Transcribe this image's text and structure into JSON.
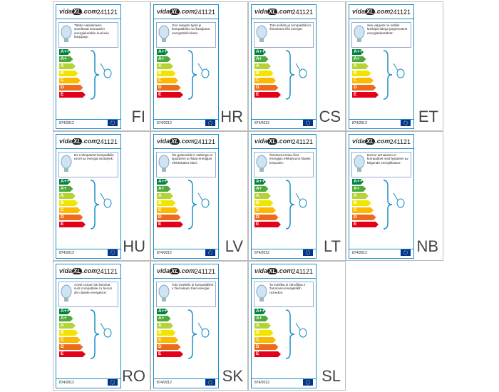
{
  "brand": {
    "name": "vida",
    "mark": "XL",
    "suffix": ".com"
  },
  "product_number": "241121",
  "regulation": "874/2012",
  "classes": [
    "A++",
    "A+",
    "A",
    "B",
    "C",
    "D",
    "E"
  ],
  "labels": [
    {
      "lang": "FI",
      "text": "Tähän valaisimeen soveltuvat seuraaviin energialuokkiin kuuluvia lamppuja:"
    },
    {
      "lang": "HR",
      "text": "Ovo rasvjeto tijelo je kompatibilno sa žaruljama energetskih klasa:"
    },
    {
      "lang": "CS",
      "text": "Toto svítidlo je kompatibilní s žárovkami tříd energie:"
    },
    {
      "lang": "ET",
      "text": "See valgusti on sobilik lambipirnidega järgnevatest energiaklassidest:"
    },
    {
      "lang": "HU",
      "text": "Ez a lámpatest kompatibilis ezzel az energia osztályok:"
    },
    {
      "lang": "LV",
      "text": "Šis gaismeklis ir saderīgs ar spuldzēm ar šādu energijas efektivitātes klasi:"
    },
    {
      "lang": "LT",
      "text": "Šviestuvui tinka šios energijos efektyvumo klasės lemputės:"
    },
    {
      "lang": "NB",
      "text": "Denne armaturen er kompatibel med lyspærer av følgende energiklasser:"
    },
    {
      "lang": "RO",
      "text": "Acest corpuri de iluminat sunt compatibile cu becuri din clasele energetice:"
    },
    {
      "lang": "SK",
      "text": "Toto svietidlo je kompatibilné s žiarovkami tried energie:"
    },
    {
      "lang": "SL",
      "text": "Ta svetilka je združljiva z žarnicami energetskih razredov:"
    }
  ]
}
